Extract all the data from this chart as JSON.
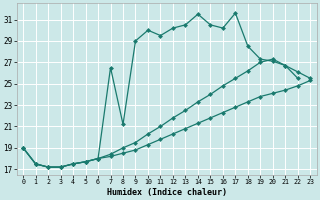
{
  "xlabel": "Humidex (Indice chaleur)",
  "bg_color": "#cce8e8",
  "grid_color": "#ffffff",
  "line_color": "#1a7a6e",
  "xlim_min": -0.5,
  "xlim_max": 23.5,
  "ylim_min": 16.5,
  "ylim_max": 32.5,
  "yticks": [
    17,
    19,
    21,
    23,
    25,
    27,
    29,
    31
  ],
  "xticks": [
    0,
    1,
    2,
    3,
    4,
    5,
    6,
    7,
    8,
    9,
    10,
    11,
    12,
    13,
    14,
    15,
    16,
    17,
    18,
    19,
    20,
    21,
    22,
    23
  ],
  "s1_x": [
    0,
    1,
    2,
    3,
    4,
    5,
    6,
    7,
    8,
    9,
    10,
    11,
    12,
    13,
    14,
    15,
    16,
    17,
    18,
    19,
    20,
    21,
    22
  ],
  "s1_y": [
    19,
    17.5,
    17.2,
    17.2,
    17.5,
    17.7,
    18.0,
    26.5,
    21.2,
    29.0,
    30.0,
    29.5,
    30.2,
    30.5,
    31.5,
    30.5,
    30.2,
    31.6,
    28.5,
    27.3,
    27.1,
    26.7,
    25.5
  ],
  "s2_x": [
    0,
    1,
    2,
    3,
    4,
    5,
    6,
    7,
    8,
    9,
    10,
    11,
    12,
    13,
    14,
    15,
    16,
    17,
    18,
    19,
    20,
    21,
    22,
    23
  ],
  "s2_y": [
    19,
    17.5,
    17.2,
    17.2,
    17.5,
    17.7,
    18.0,
    18.4,
    19.0,
    19.5,
    20.3,
    21.0,
    21.8,
    22.5,
    23.3,
    24.0,
    24.8,
    25.5,
    26.2,
    27.0,
    27.3,
    26.7,
    26.1,
    25.5
  ],
  "s3_x": [
    0,
    1,
    2,
    3,
    4,
    5,
    6,
    7,
    8,
    9,
    10,
    11,
    12,
    13,
    14,
    15,
    16,
    17,
    18,
    19,
    20,
    21,
    22,
    23
  ],
  "s3_y": [
    19,
    17.5,
    17.2,
    17.2,
    17.5,
    17.7,
    18.0,
    18.2,
    18.5,
    18.8,
    19.3,
    19.8,
    20.3,
    20.8,
    21.3,
    21.8,
    22.3,
    22.8,
    23.3,
    23.8,
    24.1,
    24.4,
    24.8,
    25.3
  ]
}
